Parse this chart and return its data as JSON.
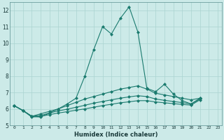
{
  "xlabel": "Humidex (Indice chaleur)",
  "x_values": [
    0,
    1,
    2,
    3,
    4,
    5,
    6,
    7,
    8,
    9,
    10,
    11,
    12,
    13,
    14,
    15,
    16,
    17,
    18,
    19,
    20,
    21,
    22,
    23
  ],
  "lines": [
    [
      6.2,
      5.9,
      5.55,
      5.5,
      5.75,
      6.0,
      6.3,
      6.65,
      8.0,
      9.6,
      11.0,
      10.55,
      11.5,
      12.2,
      10.65,
      7.25,
      7.05,
      7.5,
      6.9,
      6.5,
      6.3,
      6.65,
      null,
      null
    ],
    [
      6.2,
      5.9,
      5.55,
      5.7,
      5.85,
      6.0,
      6.2,
      6.4,
      6.6,
      6.75,
      6.9,
      7.05,
      7.2,
      7.3,
      7.4,
      7.2,
      6.95,
      6.85,
      6.75,
      6.65,
      6.55,
      6.65,
      null,
      null
    ],
    [
      6.2,
      5.9,
      5.55,
      5.6,
      5.75,
      5.88,
      5.98,
      6.1,
      6.22,
      6.35,
      6.45,
      6.55,
      6.65,
      6.73,
      6.8,
      6.75,
      6.6,
      6.52,
      6.45,
      6.38,
      6.3,
      6.6,
      null,
      null
    ],
    [
      6.2,
      5.9,
      5.5,
      5.55,
      5.65,
      5.75,
      5.83,
      5.92,
      6.0,
      6.1,
      6.2,
      6.28,
      6.37,
      6.43,
      6.5,
      6.5,
      6.42,
      6.37,
      6.32,
      6.27,
      6.23,
      6.55,
      null,
      null
    ]
  ],
  "line_color": "#1a7a6e",
  "background_color": "#cceae8",
  "grid_color": "#aad4d0",
  "ylim": [
    5.0,
    12.5
  ],
  "xlim": [
    -0.5,
    23.5
  ],
  "yticks": [
    5,
    6,
    7,
    8,
    9,
    10,
    11,
    12
  ],
  "xticks": [
    0,
    1,
    2,
    3,
    4,
    5,
    6,
    7,
    8,
    9,
    10,
    11,
    12,
    13,
    14,
    15,
    16,
    17,
    18,
    19,
    20,
    21,
    22,
    23
  ],
  "marker": "D",
  "markersize": 2.0,
  "linewidth": 0.8
}
